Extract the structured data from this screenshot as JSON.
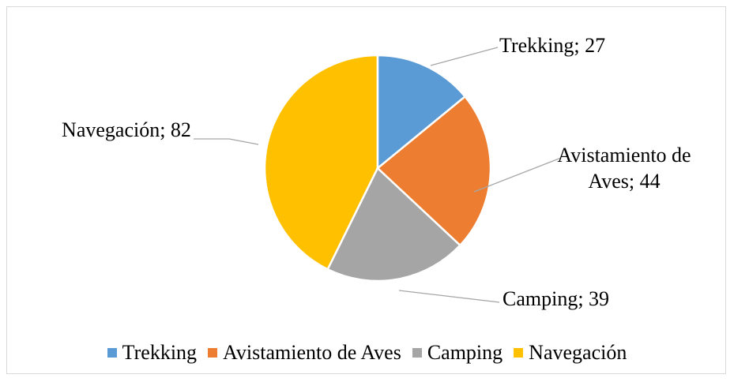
{
  "chart_data": {
    "type": "pie",
    "categories": [
      "Trekking",
      "Avistamiento de Aves",
      "Camping",
      "Navegación"
    ],
    "values": [
      27,
      44,
      39,
      82
    ],
    "value_labels": [
      "Trekking; 27",
      "Avistamiento de Aves; 44",
      "Camping; 39",
      "Navegación; 82"
    ],
    "colors": [
      "#5b9bd5",
      "#ed7d31",
      "#a5a5a5",
      "#ffc000"
    ],
    "legend": "bottom"
  }
}
